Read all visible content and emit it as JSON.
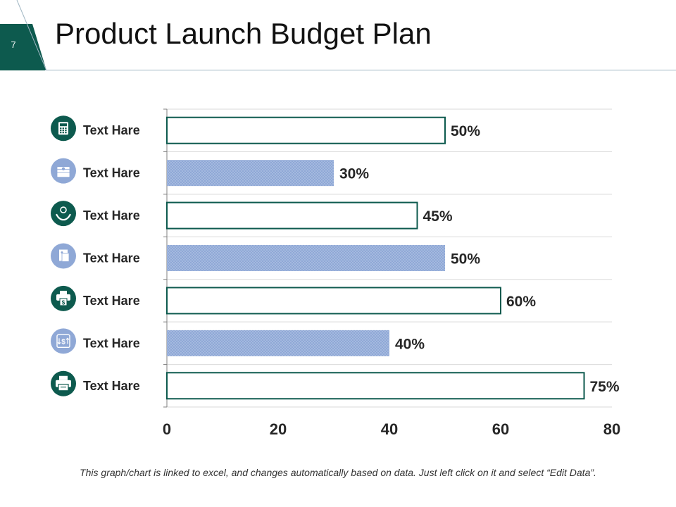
{
  "slide": {
    "number": "7",
    "title": "Product Launch Budget Plan",
    "footnote": "This graph/chart is linked to excel, and changes automatically based on data. Just left click on it and select “Edit Data”."
  },
  "colors": {
    "accent_dark": "#0d5a4e",
    "accent_light": "#8fa8d6",
    "axis": "#7f7f7f",
    "grid": "#d9d9d9",
    "text": "#262626"
  },
  "chart_data": {
    "type": "bar",
    "orientation": "horizontal",
    "title": "",
    "xlabel": "",
    "ylabel": "",
    "xlim": [
      0,
      80
    ],
    "x_ticks": [
      0,
      20,
      40,
      60,
      80
    ],
    "grid": true,
    "categories": [
      "Text Hare",
      "Text Hare",
      "Text Hare",
      "Text Hare",
      "Text Hare",
      "Text Hare",
      "Text Hare"
    ],
    "values": [
      50,
      30,
      45,
      50,
      60,
      40,
      75
    ],
    "data_labels": [
      "50%",
      "30%",
      "45%",
      "50%",
      "60%",
      "40%",
      "75%"
    ],
    "bar_styles": [
      "outline",
      "dotted",
      "outline",
      "dotted",
      "outline",
      "dotted",
      "outline"
    ],
    "icons": [
      "calculator-icon",
      "money-stack-icon",
      "hand-bulb-icon",
      "document-icon",
      "printer-dollar-icon",
      "money-exchange-icon",
      "printer-icon"
    ],
    "icon_styles": [
      "dark",
      "light",
      "dark",
      "light",
      "dark",
      "light",
      "dark"
    ]
  }
}
